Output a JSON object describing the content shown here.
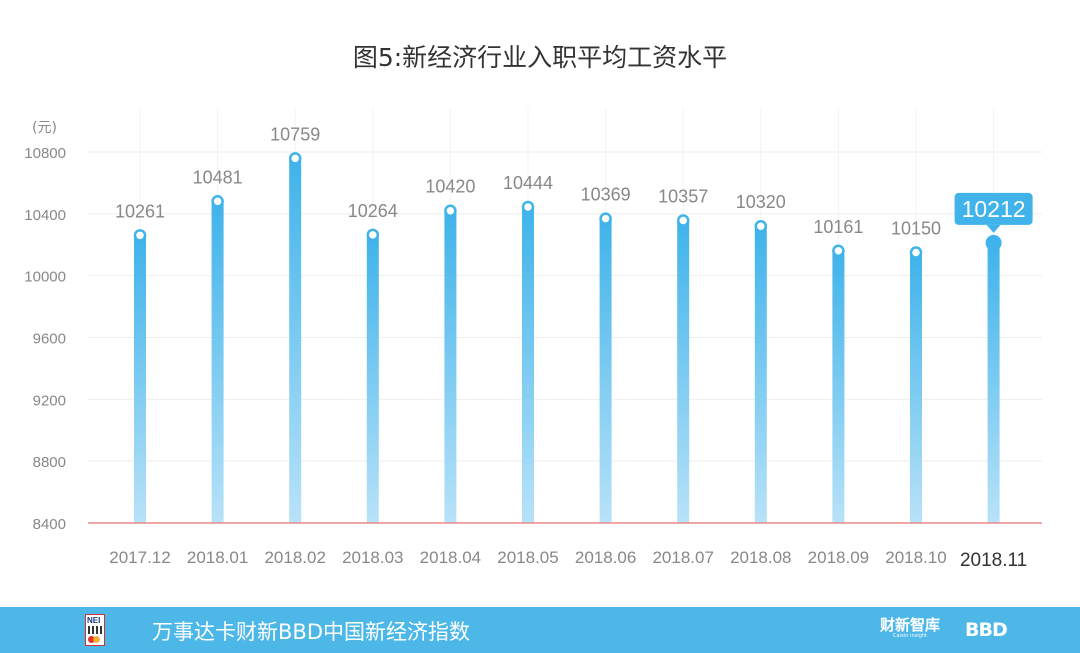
{
  "title": "图5:新经济行业入职平均工资水平",
  "footer": {
    "text": "万事达卡财新BBD中国新经济指数",
    "logo_text": "NEI",
    "brand_caixin": "财新智库",
    "brand_caixin_sub": "Caixin Insight",
    "brand_bbd": "BBD"
  },
  "chart_data": {
    "type": "bar",
    "categories": [
      "2017.12",
      "2018.01",
      "2018.02",
      "2018.03",
      "2018.04",
      "2018.05",
      "2018.06",
      "2018.07",
      "2018.08",
      "2018.09",
      "2018.10",
      "2018.11"
    ],
    "values": [
      10261,
      10481,
      10759,
      10264,
      10420,
      10444,
      10369,
      10357,
      10320,
      10161,
      10150,
      10212
    ],
    "ylabel": "(元)",
    "ylim": [
      8400,
      10800
    ],
    "yticks": [
      8400,
      8800,
      9200,
      9600,
      10000,
      10400,
      10800
    ],
    "highlight_index": 11,
    "grid": true,
    "colors": {
      "bar_top": "#3fb3ea",
      "bar_bottom": "#b8e2f8",
      "baseline": "#e88a8a",
      "grid": "#eeeeee",
      "label": "#888888",
      "highlight": "#3fb3ea"
    }
  }
}
